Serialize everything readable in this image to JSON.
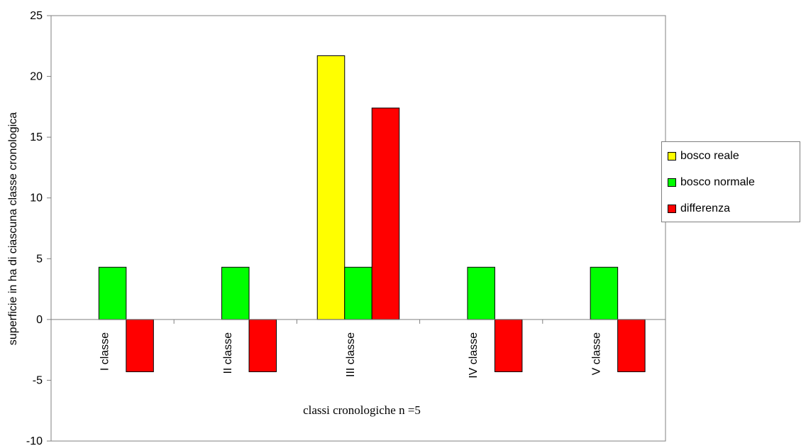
{
  "chart_data": {
    "type": "bar",
    "categories": [
      "I classe",
      "II classe",
      "III classe",
      "IV classe",
      "V classe"
    ],
    "series": [
      {
        "name": "bosco reale",
        "color": "#ffff00",
        "values": [
          0,
          0,
          21.7,
          0,
          0
        ]
      },
      {
        "name": "bosco normale",
        "color": "#00ff00",
        "values": [
          4.3,
          4.3,
          4.3,
          4.3,
          4.3
        ]
      },
      {
        "name": "differenza",
        "color": "#ff0000",
        "values": [
          -4.3,
          -4.3,
          17.4,
          -4.3,
          -4.3
        ]
      }
    ],
    "title": "",
    "xlabel": "classi cronologiche n =5",
    "ylabel": "superficie in ha di ciascuna classe cronologica",
    "ylim": [
      -10,
      25
    ],
    "yticks": [
      "-10",
      "-5",
      "0",
      "5",
      "10",
      "15",
      "20",
      "25"
    ],
    "grid": false,
    "legend_position": "right"
  }
}
